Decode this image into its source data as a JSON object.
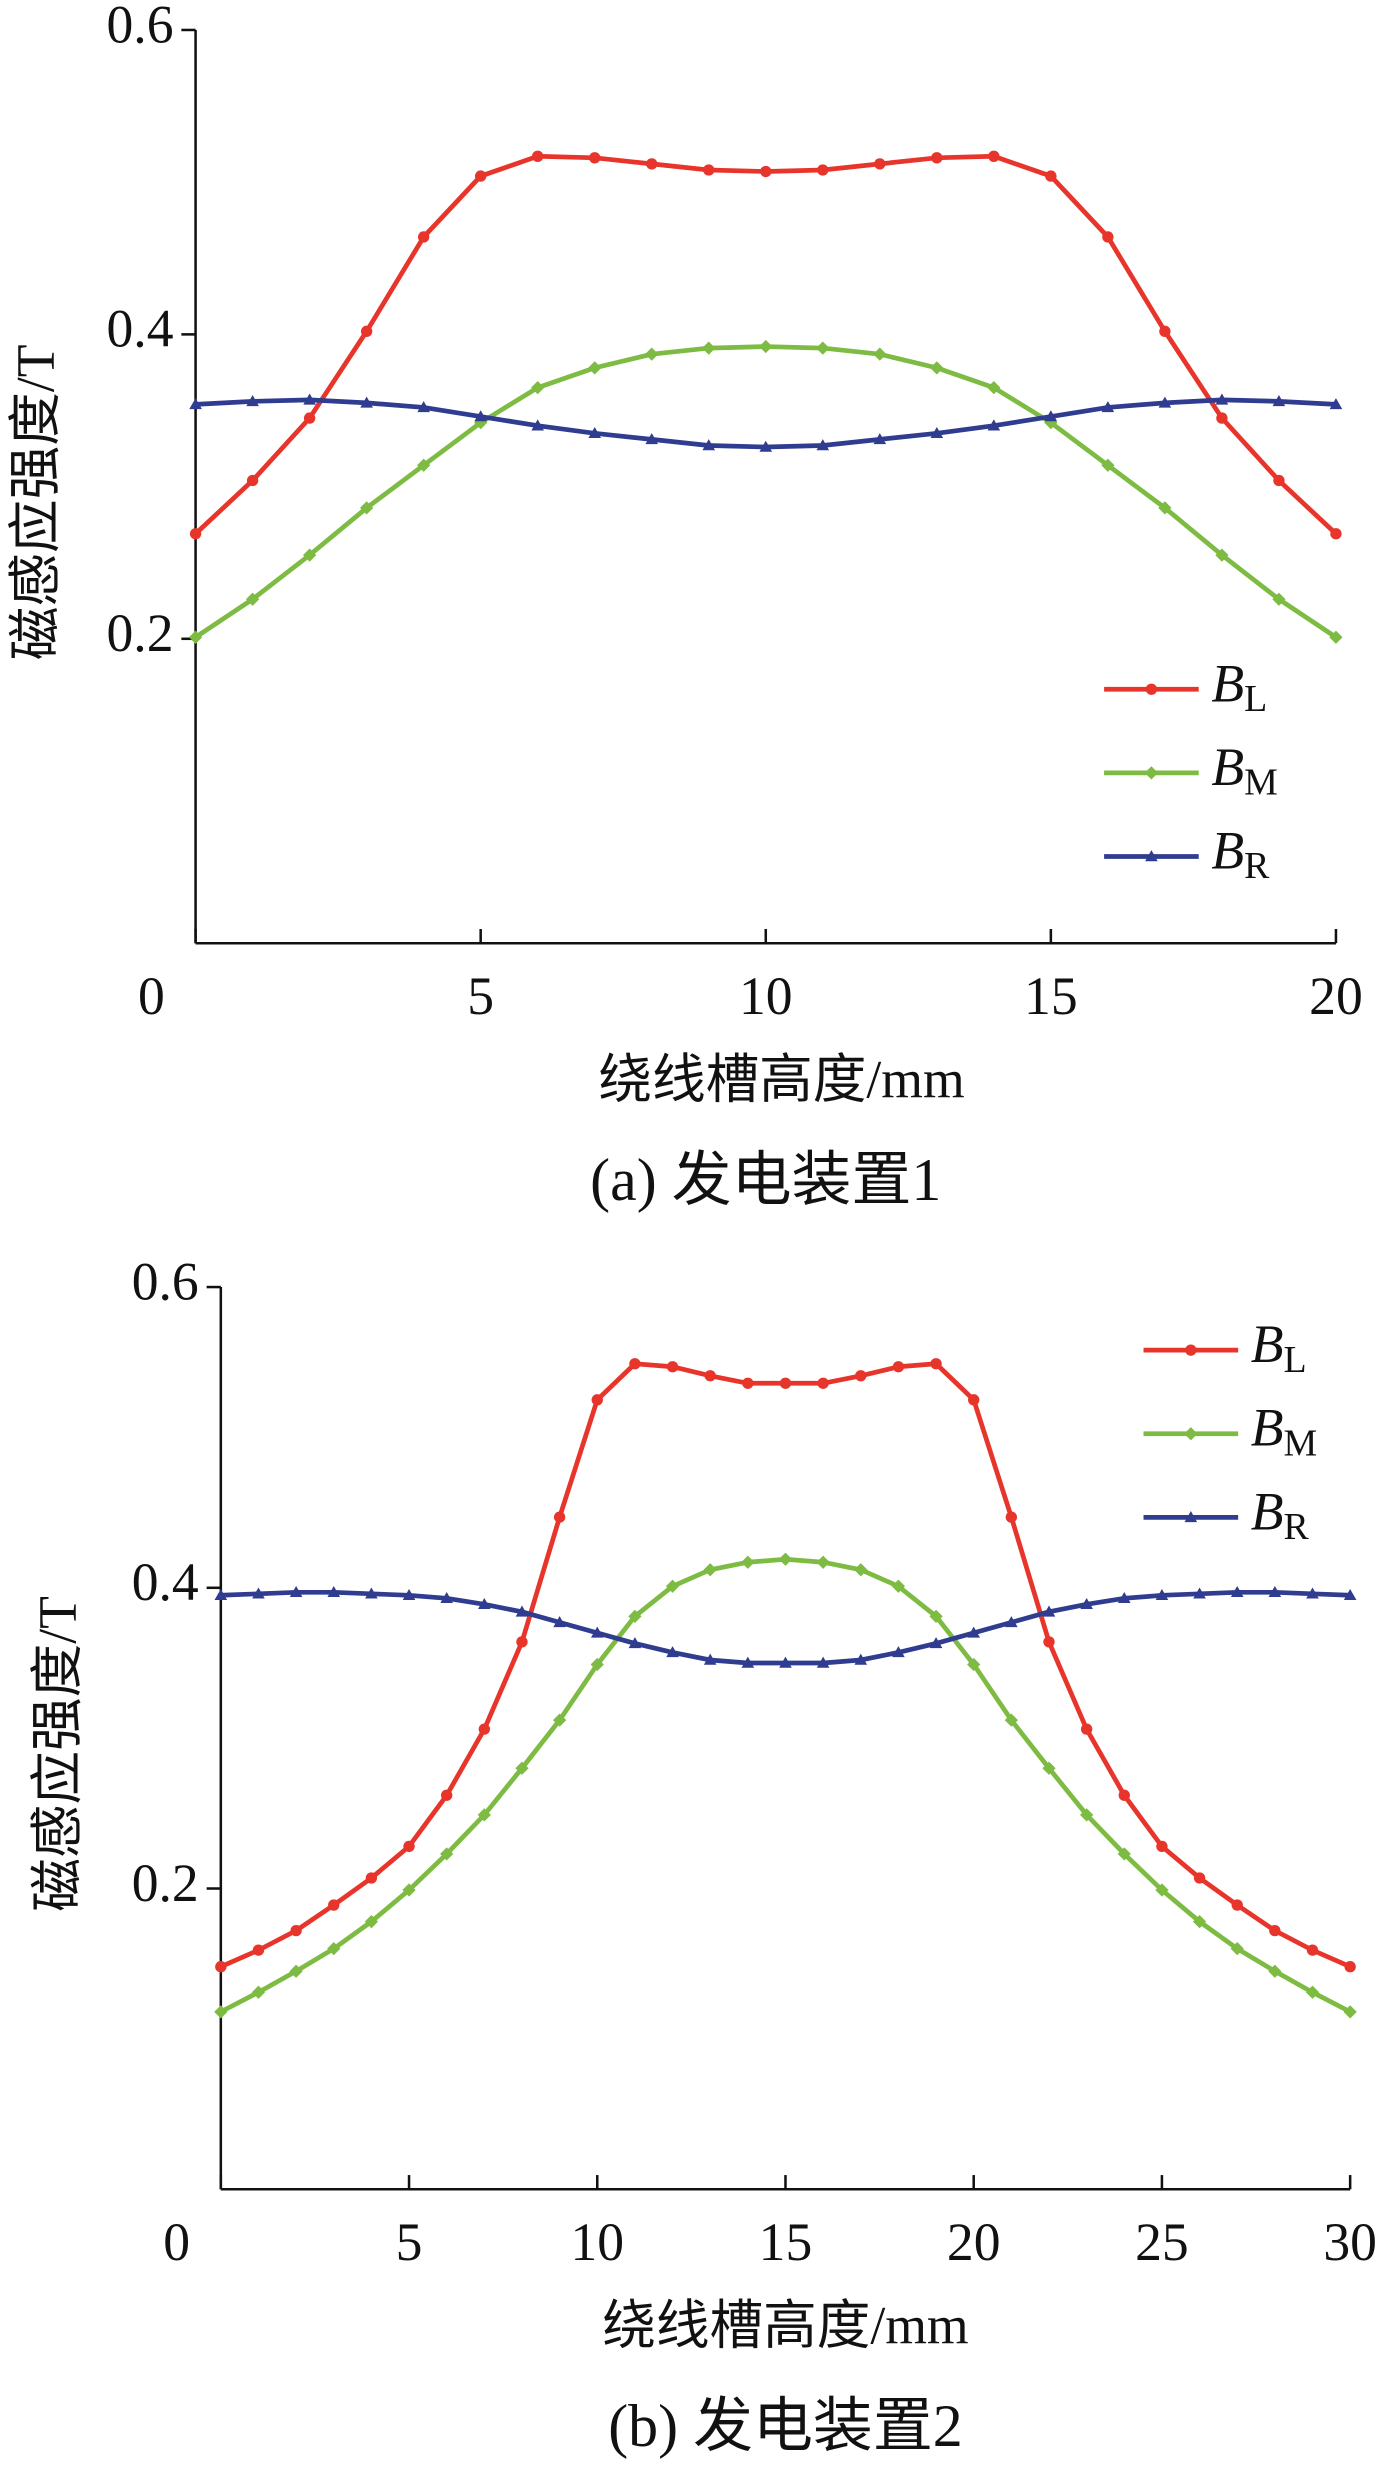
{
  "chart_data": [
    {
      "type": "line",
      "ylabel": "磁感应强度/T",
      "xlabel": "绕线槽高度/mm",
      "caption": "(a)  发电装置1",
      "x": [
        0,
        1,
        2,
        3,
        4,
        5,
        6,
        7,
        8,
        9,
        10,
        11,
        12,
        13,
        14,
        15,
        16,
        17,
        18,
        19,
        20
      ],
      "xlim": [
        0,
        20
      ],
      "xticks": [
        0,
        5,
        10,
        15,
        20
      ],
      "ylim": [
        0,
        0.6
      ],
      "yticks": [
        0.2,
        0.4,
        0.6
      ],
      "legend": "lower right",
      "series": [
        {
          "name": "BL",
          "color": "#e8352b",
          "marker": "circle",
          "values": [
            0.269,
            0.304,
            0.345,
            0.402,
            0.464,
            0.504,
            0.517,
            0.516,
            0.512,
            0.508,
            0.507,
            0.508,
            0.512,
            0.516,
            0.517,
            0.504,
            0.464,
            0.402,
            0.345,
            0.304,
            0.269
          ]
        },
        {
          "name": "BM",
          "color": "#7dbb42",
          "marker": "diamond",
          "values": [
            0.201,
            0.226,
            0.255,
            0.286,
            0.314,
            0.342,
            0.365,
            0.378,
            0.387,
            0.391,
            0.392,
            0.391,
            0.387,
            0.378,
            0.365,
            0.342,
            0.314,
            0.286,
            0.255,
            0.226,
            0.201
          ]
        },
        {
          "name": "BR",
          "color": "#2f3c8f",
          "marker": "triangle",
          "values": [
            0.354,
            0.356,
            0.357,
            0.355,
            0.352,
            0.346,
            0.34,
            0.335,
            0.331,
            0.327,
            0.326,
            0.327,
            0.331,
            0.335,
            0.34,
            0.346,
            0.352,
            0.355,
            0.357,
            0.356,
            0.354
          ]
        }
      ]
    },
    {
      "type": "line",
      "ylabel": "磁感应强度/T",
      "xlabel": "绕线槽高度/mm",
      "caption": "(b)  发电装置2",
      "x": [
        0,
        1,
        2,
        3,
        4,
        5,
        6,
        7,
        8,
        9,
        10,
        11,
        12,
        13,
        14,
        15,
        16,
        17,
        18,
        19,
        20,
        21,
        22,
        23,
        24,
        25,
        26,
        27,
        28,
        29,
        30
      ],
      "xlim": [
        0,
        30
      ],
      "xticks": [
        0,
        5,
        10,
        15,
        20,
        25,
        30
      ],
      "ylim": [
        0,
        0.6
      ],
      "yticks": [
        0.2,
        0.4,
        0.6
      ],
      "legend": "upper right",
      "series": [
        {
          "name": "BL",
          "color": "#e8352b",
          "marker": "circle",
          "values": [
            0.148,
            0.159,
            0.172,
            0.189,
            0.207,
            0.228,
            0.262,
            0.306,
            0.364,
            0.447,
            0.525,
            0.549,
            0.547,
            0.541,
            0.536,
            0.536,
            0.536,
            0.541,
            0.547,
            0.549,
            0.525,
            0.447,
            0.364,
            0.306,
            0.262,
            0.228,
            0.207,
            0.189,
            0.172,
            0.159,
            0.148
          ]
        },
        {
          "name": "BM",
          "color": "#7dbb42",
          "marker": "diamond",
          "values": [
            0.118,
            0.131,
            0.145,
            0.16,
            0.178,
            0.199,
            0.223,
            0.249,
            0.28,
            0.312,
            0.349,
            0.381,
            0.401,
            0.412,
            0.417,
            0.419,
            0.417,
            0.412,
            0.401,
            0.381,
            0.349,
            0.312,
            0.28,
            0.249,
            0.223,
            0.199,
            0.178,
            0.16,
            0.145,
            0.131,
            0.118
          ]
        },
        {
          "name": "BR",
          "color": "#2f3c8f",
          "marker": "triangle",
          "values": [
            0.395,
            0.396,
            0.397,
            0.397,
            0.396,
            0.395,
            0.393,
            0.389,
            0.384,
            0.377,
            0.37,
            0.363,
            0.357,
            0.352,
            0.35,
            0.35,
            0.35,
            0.352,
            0.357,
            0.363,
            0.37,
            0.377,
            0.384,
            0.389,
            0.393,
            0.395,
            0.396,
            0.397,
            0.397,
            0.396,
            0.395
          ]
        }
      ]
    }
  ]
}
